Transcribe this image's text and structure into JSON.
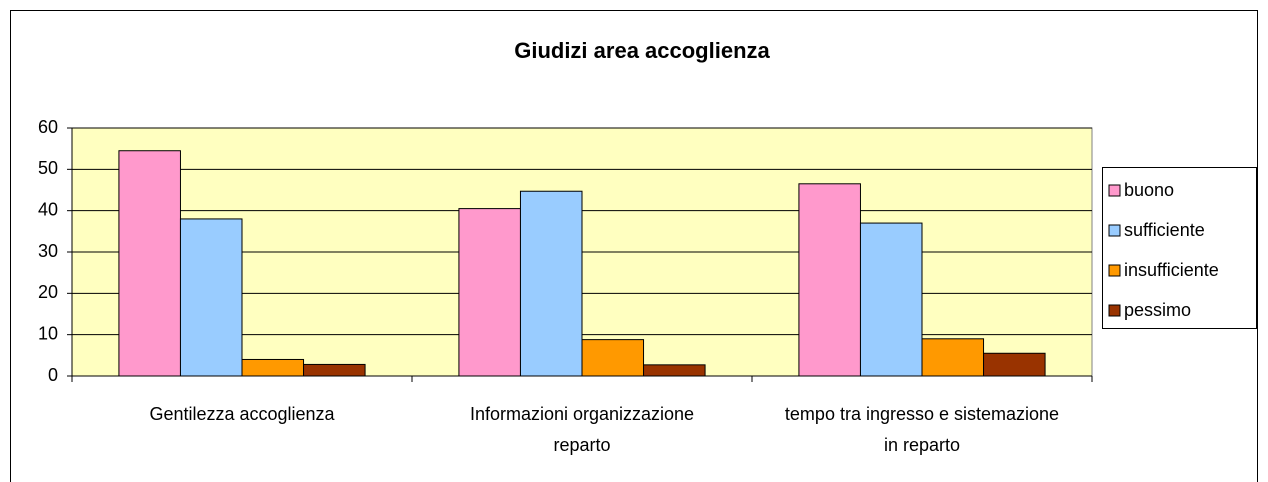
{
  "chart_data": {
    "type": "bar",
    "title": "Giudizi area accoglienza",
    "categories": [
      "Gentilezza accoglienza",
      "Informazioni organizzazione reparto",
      "tempo tra ingresso e sistemazione in reparto"
    ],
    "series": [
      {
        "name": "buono",
        "color": "#ff99cc",
        "values": [
          54.5,
          40.5,
          46.5
        ]
      },
      {
        "name": "sufficiente",
        "color": "#99ccff",
        "values": [
          38,
          44.7,
          37
        ]
      },
      {
        "name": "insufficiente",
        "color": "#ff9900",
        "values": [
          4,
          8.8,
          9
        ]
      },
      {
        "name": "pessimo",
        "color": "#993300",
        "values": [
          2.8,
          2.7,
          5.5
        ]
      }
    ],
    "ylim": [
      0,
      60
    ],
    "yticks": [
      0,
      10,
      20,
      30,
      40,
      50,
      60
    ],
    "grid": true,
    "legend": "right",
    "plot_background": "#ffffc0"
  }
}
